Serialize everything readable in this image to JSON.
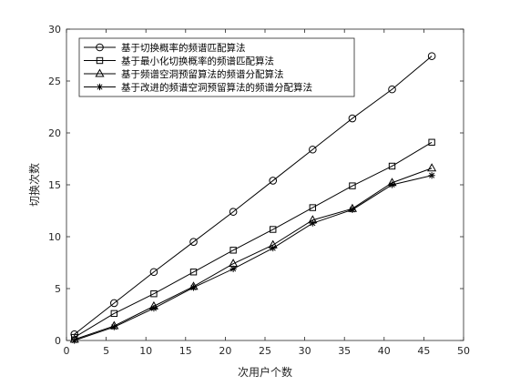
{
  "chart_data": {
    "type": "line",
    "title": "",
    "xlabel": "次用户个数",
    "ylabel": "切换次数",
    "xlim": [
      0,
      50
    ],
    "ylim": [
      0,
      30
    ],
    "xticks": [
      0,
      5,
      10,
      15,
      20,
      25,
      30,
      35,
      40,
      45,
      50
    ],
    "yticks": [
      0,
      5,
      10,
      15,
      20,
      25,
      30
    ],
    "grid": false,
    "legend_position": "top-left",
    "x": [
      1,
      6,
      11,
      16,
      21,
      26,
      31,
      36,
      41,
      46
    ],
    "series": [
      {
        "name": "基于切换概率的频谱匹配算法",
        "marker": "circle",
        "values": [
          0.6,
          3.6,
          6.6,
          9.5,
          12.4,
          15.4,
          18.4,
          21.4,
          24.2,
          27.4
        ]
      },
      {
        "name": "基于最小化切换概率的频谱匹配算法",
        "marker": "square",
        "values": [
          0.3,
          2.6,
          4.5,
          6.6,
          8.7,
          10.7,
          12.8,
          14.9,
          16.8,
          19.1
        ]
      },
      {
        "name": "基于频谱空洞预留算法的频谱分配算法",
        "marker": "triangle",
        "values": [
          0.1,
          1.4,
          3.3,
          5.2,
          7.4,
          9.2,
          11.6,
          12.7,
          15.2,
          16.6
        ]
      },
      {
        "name": "基于改进的频谱空洞预留算法的频谱分配算法",
        "marker": "star",
        "values": [
          0.0,
          1.3,
          3.1,
          5.1,
          6.9,
          8.9,
          11.3,
          12.6,
          15.0,
          15.9
        ]
      }
    ],
    "line_color": "#000000"
  }
}
